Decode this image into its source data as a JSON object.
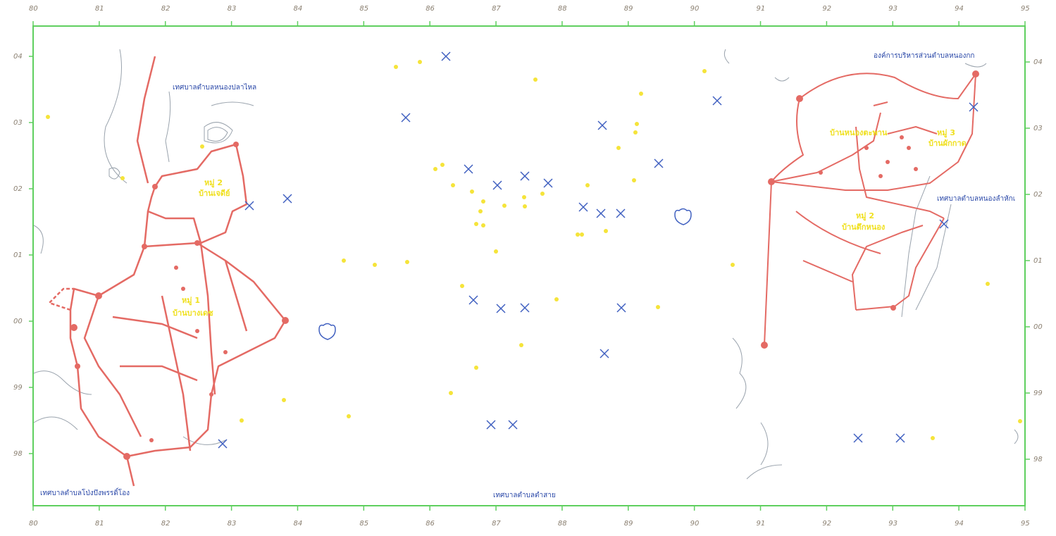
{
  "map": {
    "top_ticks": [
      "80",
      "81",
      "82",
      "83",
      "84",
      "85",
      "86",
      "87",
      "88",
      "89",
      "90",
      "91",
      "92",
      "93",
      "94",
      "95"
    ],
    "bottom_ticks": [
      "80",
      "81",
      "82",
      "83",
      "84",
      "85",
      "86",
      "87",
      "88",
      "89",
      "90",
      "91",
      "92",
      "93",
      "94",
      "95"
    ],
    "left_ticks": [
      "04",
      "03",
      "02",
      "01",
      "00",
      "99",
      "98"
    ],
    "right_ticks": [
      "04",
      "03",
      "02",
      "01",
      "00",
      "99",
      "98"
    ],
    "place_labels": {
      "top_left_municipality": "เทศบาลตำบลหนองปลาไหล",
      "bottom_left_municipality": "เทศบาลตำบลโป่งบึงพรรดิ์โอง",
      "bottom_center_municipality": "เทศบาลตำบลตำสาย",
      "top_right_office": "องค์การบริหารส่วนตำบลหนองกก",
      "right_municipality": "เทศบาลตำบลหนองลำหักเ"
    },
    "village_labels": {
      "left_upper": "หมู่ 2",
      "left_upper_name": "บ้านเจดีย์",
      "left_lower": "หมู่ 1",
      "left_lower_name": "บ้านบางเดช",
      "right_upper_name": "บ้านหนองตะพาน",
      "right_upper_b": "หมู่ 3",
      "right_upper_b_name": "บ้านผักกาด",
      "right_mid": "หมู่ 2",
      "right_mid_name": "บ้านตึกหนอง"
    },
    "colors": {
      "frame": "#5fcf5f",
      "roads": "#e46a64",
      "markers": "#4060c0",
      "yellow_points": "#f5e43a",
      "gray_lines": "#9aa3ad"
    }
  }
}
